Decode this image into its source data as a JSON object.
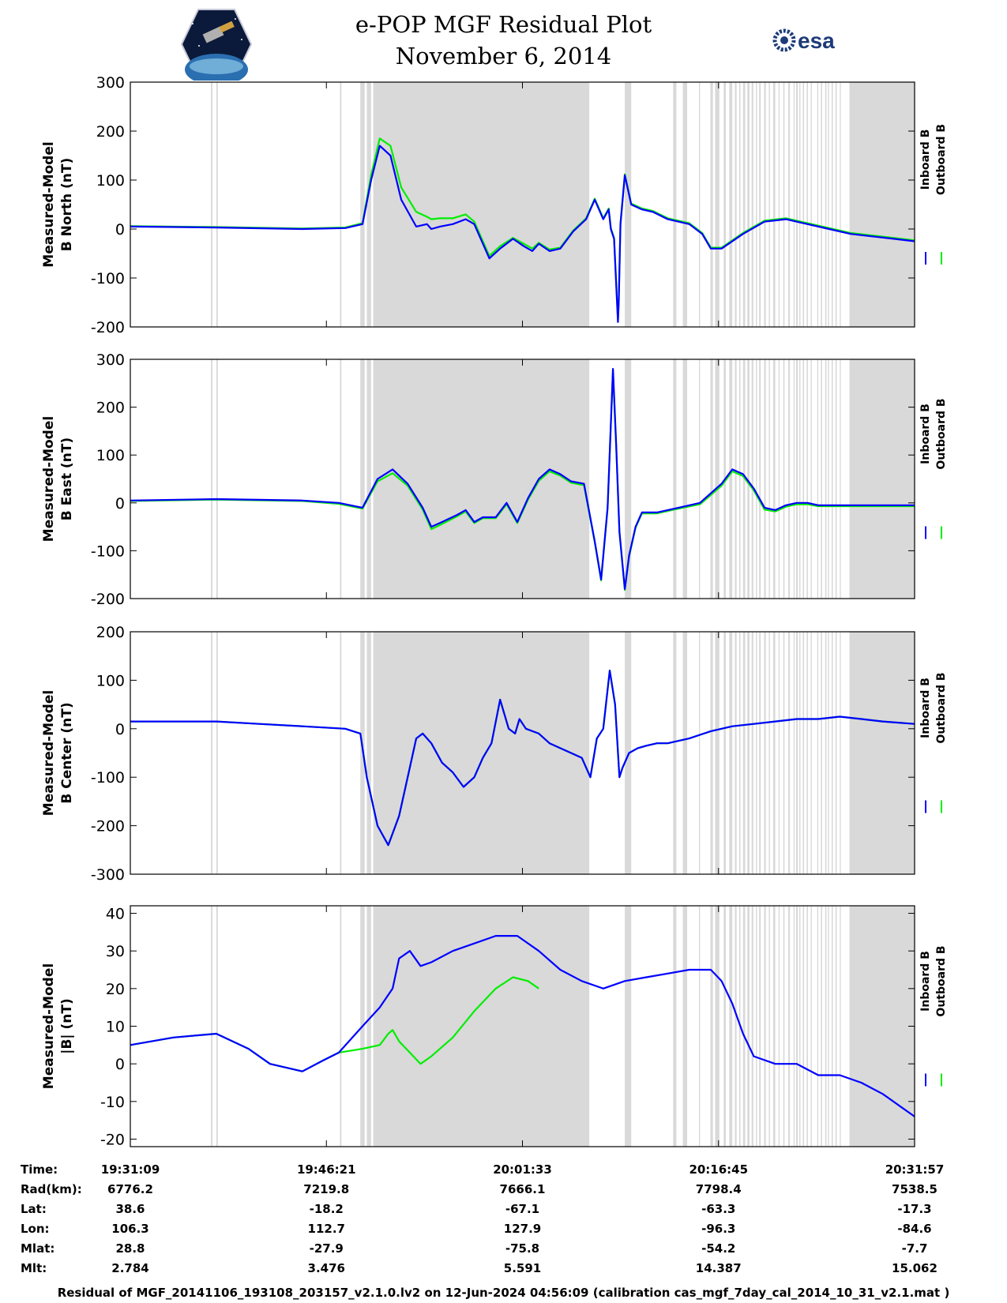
{
  "header": {
    "title_line1": "e-POP MGF Residual Plot",
    "title_line2": "November 6, 2014",
    "logo_left": "CASSIOPE mission logo",
    "logo_right_text": "esa"
  },
  "colors": {
    "inboard": "#0000ff",
    "outboard": "#00ee00",
    "shade": "#d9d9d9"
  },
  "legend": {
    "inboard": "Inboard B",
    "outboard": "Outboard B"
  },
  "chart_data": {
    "type": "line",
    "x_range_seconds": [
      0,
      3648
    ],
    "x_ticks_seconds": [
      0,
      912,
      1824,
      2736,
      3648
    ],
    "shaded_intervals_seconds": [
      [
        375,
        382
      ],
      [
        400,
        407
      ],
      [
        975,
        982
      ],
      [
        1070,
        1090
      ],
      [
        1100,
        1120
      ],
      [
        1130,
        2135
      ],
      [
        2300,
        2330
      ],
      [
        2525,
        2540
      ],
      [
        2570,
        2590
      ],
      [
        2645,
        2650
      ],
      [
        2698,
        2710
      ],
      [
        2720,
        2740
      ],
      [
        2760,
        2770
      ],
      [
        2786,
        2800
      ],
      [
        2812,
        2820
      ],
      [
        2832,
        2838
      ],
      [
        2850,
        2860
      ],
      [
        2870,
        2880
      ],
      [
        2890,
        2898
      ],
      [
        2910,
        2915
      ],
      [
        2925,
        2932
      ],
      [
        2948,
        2956
      ],
      [
        2970,
        2975
      ],
      [
        2990,
        3000
      ],
      [
        3015,
        3020
      ],
      [
        3037,
        3043
      ],
      [
        3060,
        3068
      ],
      [
        3085,
        3090
      ],
      [
        3097,
        3105
      ],
      [
        3112,
        3117
      ],
      [
        3128,
        3134
      ],
      [
        3146,
        3152
      ],
      [
        3165,
        3170
      ],
      [
        3195,
        3200
      ],
      [
        3212,
        3218
      ],
      [
        3232,
        3238
      ],
      [
        3245,
        3250
      ],
      [
        3262,
        3268
      ],
      [
        3280,
        3286
      ],
      [
        3300,
        3305
      ],
      [
        3345,
        3785
      ]
    ],
    "panels": [
      {
        "ylabel_line1": "Measured-Model",
        "ylabel_line2": "B North (nT)",
        "ylim": [
          -200,
          300
        ],
        "yticks": [
          -200,
          -100,
          0,
          100,
          200,
          300
        ],
        "series": [
          {
            "name": "Inboard B",
            "x": [
              0,
              400,
              800,
              1000,
              1080,
              1120,
              1160,
              1210,
              1260,
              1330,
              1380,
              1400,
              1440,
              1500,
              1560,
              1600,
              1630,
              1670,
              1720,
              1780,
              1830,
              1870,
              1900,
              1950,
              2000,
              2060,
              2120,
              2160,
              2200,
              2225,
              2235,
              2250,
              2268,
              2272,
              2280,
              2300,
              2330,
              2380,
              2430,
              2500,
              2600,
              2660,
              2700,
              2750,
              2850,
              2950,
              3050,
              3150,
              3250,
              3350,
              3450,
              3550,
              3648
            ],
            "y": [
              5,
              3,
              0,
              2,
              10,
              100,
              170,
              150,
              60,
              5,
              10,
              0,
              5,
              10,
              20,
              10,
              -20,
              -60,
              -40,
              -20,
              -35,
              -45,
              -30,
              -45,
              -40,
              -5,
              20,
              60,
              20,
              40,
              0,
              -20,
              -190,
              -150,
              10,
              110,
              50,
              40,
              35,
              20,
              10,
              -10,
              -40,
              -40,
              -10,
              15,
              20,
              10,
              0,
              -10,
              -15,
              -20,
              -25
            ]
          },
          {
            "name": "Outboard B",
            "x": [
              0,
              400,
              800,
              1000,
              1080,
              1120,
              1160,
              1210,
              1260,
              1330,
              1380,
              1400,
              1440,
              1500,
              1560,
              1600,
              1630,
              1670,
              1720,
              1780,
              1830,
              1870,
              1900,
              1950,
              2000,
              2060,
              2120,
              2160,
              2200,
              2225,
              2235,
              2250,
              2268,
              2272,
              2280,
              2300,
              2330,
              2380,
              2430,
              2500,
              2600,
              2660,
              2700,
              2750,
              2850,
              2950,
              3050,
              3150,
              3250,
              3350,
              3450,
              3550,
              3648
            ],
            "y": [
              6,
              4,
              1,
              3,
              12,
              110,
              185,
              170,
              85,
              35,
              25,
              20,
              22,
              22,
              30,
              15,
              -15,
              -55,
              -35,
              -18,
              -30,
              -40,
              -28,
              -42,
              -38,
              -3,
              22,
              62,
              22,
              42,
              2,
              -18,
              -185,
              -148,
              12,
              112,
              52,
              42,
              37,
              22,
              12,
              -8,
              -38,
              -38,
              -8,
              17,
              22,
              12,
              2,
              -8,
              -13,
              -18,
              -23
            ]
          }
        ]
      },
      {
        "ylabel_line1": "Measured-Model",
        "ylabel_line2": "B East (nT)",
        "ylim": [
          -200,
          300
        ],
        "yticks": [
          -200,
          -100,
          0,
          100,
          200,
          300
        ],
        "series": [
          {
            "name": "Inboard B",
            "x": [
              0,
              400,
              800,
              970,
              1080,
              1150,
              1220,
              1290,
              1360,
              1400,
              1450,
              1520,
              1560,
              1600,
              1640,
              1700,
              1750,
              1800,
              1850,
              1900,
              1950,
              2000,
              2050,
              2110,
              2160,
              2190,
              2220,
              2245,
              2260,
              2275,
              2300,
              2320,
              2350,
              2380,
              2450,
              2550,
              2650,
              2750,
              2800,
              2850,
              2900,
              2950,
              3000,
              3050,
              3100,
              3150,
              3200,
              3300,
              3648
            ],
            "y": [
              5,
              8,
              5,
              0,
              -10,
              50,
              70,
              40,
              -10,
              -50,
              -40,
              -25,
              -15,
              -40,
              -30,
              -30,
              0,
              -40,
              10,
              50,
              70,
              60,
              45,
              40,
              -80,
              -160,
              -10,
              280,
              120,
              -60,
              -180,
              -110,
              -50,
              -20,
              -20,
              -10,
              0,
              40,
              70,
              60,
              30,
              -10,
              -15,
              -5,
              0,
              0,
              -5,
              -5,
              -5
            ]
          },
          {
            "name": "Outboard B",
            "x": [
              0,
              400,
              800,
              970,
              1080,
              1150,
              1220,
              1290,
              1360,
              1400,
              1450,
              1520,
              1560,
              1600,
              1640,
              1700,
              1750,
              1800,
              1850,
              1900,
              1950,
              2000,
              2050,
              2110,
              2160,
              2190,
              2220,
              2245,
              2260,
              2275,
              2300,
              2320,
              2350,
              2380,
              2450,
              2550,
              2650,
              2750,
              2800,
              2850,
              2900,
              2950,
              3000,
              3050,
              3100,
              3150,
              3200,
              3300,
              3648
            ],
            "y": [
              4,
              7,
              4,
              -2,
              -12,
              45,
              62,
              36,
              -14,
              -55,
              -44,
              -28,
              -18,
              -42,
              -32,
              -32,
              -3,
              -42,
              7,
              46,
              66,
              57,
              42,
              37,
              -82,
              -162,
              -12,
              276,
              117,
              -62,
              -182,
              -112,
              -52,
              -22,
              -22,
              -12,
              -3,
              36,
              66,
              56,
              26,
              -14,
              -18,
              -8,
              -3,
              -3,
              -7,
              -7,
              -7
            ]
          }
        ]
      },
      {
        "ylabel_line1": "Measured-Model",
        "ylabel_line2": "B Center (nT)",
        "ylim": [
          -300,
          200
        ],
        "yticks": [
          -300,
          -200,
          -100,
          0,
          100,
          200
        ],
        "series": [
          {
            "name": "Inboard B",
            "x": [
              0,
              200,
              400,
              600,
              800,
              1000,
              1070,
              1100,
              1150,
              1200,
              1250,
              1300,
              1330,
              1360,
              1400,
              1450,
              1500,
              1550,
              1600,
              1640,
              1680,
              1720,
              1760,
              1790,
              1810,
              1840,
              1900,
              1950,
              2000,
              2050,
              2100,
              2140,
              2170,
              2200,
              2230,
              2255,
              2275,
              2290,
              2320,
              2360,
              2400,
              2450,
              2500,
              2600,
              2700,
              2800,
              2900,
              3000,
              3100,
              3200,
              3300,
              3400,
              3500,
              3648
            ],
            "y": [
              15,
              15,
              15,
              10,
              5,
              0,
              -10,
              -100,
              -200,
              -240,
              -180,
              -80,
              -20,
              -10,
              -30,
              -70,
              -90,
              -120,
              -100,
              -60,
              -30,
              60,
              0,
              -10,
              20,
              0,
              -10,
              -30,
              -40,
              -50,
              -60,
              -100,
              -20,
              0,
              120,
              50,
              -100,
              -80,
              -50,
              -40,
              -35,
              -30,
              -30,
              -20,
              -5,
              5,
              10,
              15,
              20,
              20,
              25,
              20,
              15,
              10
            ]
          },
          {
            "name": "Outboard B",
            "x": [
              0,
              200,
              400,
              600,
              800,
              1000,
              1070,
              1100,
              1150,
              1200,
              1250,
              1300,
              1330,
              1360,
              1400,
              1450,
              1500,
              1550,
              1600,
              1640,
              1680,
              1720,
              1760,
              1790,
              1810,
              1840,
              1900,
              1950,
              2000,
              2050,
              2100,
              2140,
              2170,
              2200,
              2230,
              2255,
              2275,
              2290,
              2320,
              2360,
              2400,
              2450,
              2500,
              2600,
              2700,
              2800,
              2900,
              3000,
              3100,
              3200,
              3300,
              3400,
              3500,
              3648
            ],
            "y": [
              15,
              15,
              15,
              10,
              5,
              0,
              -10,
              -100,
              -200,
              -240,
              -180,
              -80,
              -20,
              -10,
              -30,
              -70,
              -90,
              -120,
              -100,
              -60,
              -30,
              60,
              0,
              -10,
              20,
              0,
              -10,
              -30,
              -40,
              -50,
              -60,
              -100,
              -20,
              0,
              120,
              50,
              -100,
              -80,
              -50,
              -40,
              -35,
              -30,
              -30,
              -20,
              -5,
              5,
              10,
              15,
              20,
              20,
              25,
              20,
              15,
              10
            ]
          }
        ]
      },
      {
        "ylabel_line1": "Measured-Model",
        "ylabel_line2": "|B| (nT)",
        "ylim": [
          -22,
          42
        ],
        "yticks": [
          -20,
          -10,
          0,
          10,
          20,
          30,
          40
        ],
        "series": [
          {
            "name": "Inboard B",
            "x": [
              0,
              200,
              400,
              550,
              650,
              800,
              900,
              970,
              1080,
              1160,
              1220,
              1250,
              1300,
              1350,
              1400,
              1500,
              1600,
              1700,
              1800,
              1900,
              2000,
              2100,
              2200,
              2300,
              2400,
              2500,
              2600,
              2700,
              2750,
              2800,
              2850,
              2900,
              3000,
              3100,
              3200,
              3300,
              3400,
              3500,
              3648
            ],
            "y": [
              5,
              7,
              8,
              4,
              0,
              -2,
              1,
              3,
              10,
              15,
              20,
              28,
              30,
              26,
              27,
              30,
              32,
              34,
              34,
              30,
              25,
              22,
              20,
              22,
              23,
              24,
              25,
              25,
              22,
              16,
              8,
              2,
              0,
              0,
              -3,
              -3,
              -5,
              -8,
              -14
            ]
          },
          {
            "name": "Outboard B",
            "x": [
              0,
              200,
              400,
              550,
              650,
              800,
              900,
              970,
              1080,
              1160,
              1200,
              1220,
              1250,
              1300,
              1350,
              1400,
              1500,
              1600,
              1700,
              1780,
              1850,
              1900
            ],
            "y": [
              5,
              7,
              8,
              4,
              0,
              -2,
              1,
              3,
              4,
              5,
              8,
              9,
              6,
              3,
              0,
              2,
              7,
              14,
              20,
              23,
              22,
              20
            ]
          }
        ]
      }
    ]
  },
  "ephemeris_table": {
    "row_labels": [
      "Time:",
      "Rad(km):",
      "Lat:",
      "Lon:",
      "Mlat:",
      "Mlt:"
    ],
    "columns": [
      [
        "19:31:09",
        "6776.2",
        "38.6",
        "106.3",
        "28.8",
        "2.784"
      ],
      [
        "19:46:21",
        "7219.8",
        "-18.2",
        "112.7",
        "-27.9",
        "3.476"
      ],
      [
        "20:01:33",
        "7666.1",
        "-67.1",
        "127.9",
        "-75.8",
        "5.591"
      ],
      [
        "20:16:45",
        "7798.4",
        "-63.3",
        "-96.3",
        "-54.2",
        "14.387"
      ],
      [
        "20:31:57",
        "7538.5",
        "-17.3",
        "-84.6",
        "-7.7",
        "15.062"
      ]
    ]
  },
  "footer": "Residual of MGF_20141106_193108_203157_v2.1.0.lv2 on 12-Jun-2024 04:56:09 (calibration cas_mgf_7day_cal_2014_10_31_v2.1.mat )"
}
